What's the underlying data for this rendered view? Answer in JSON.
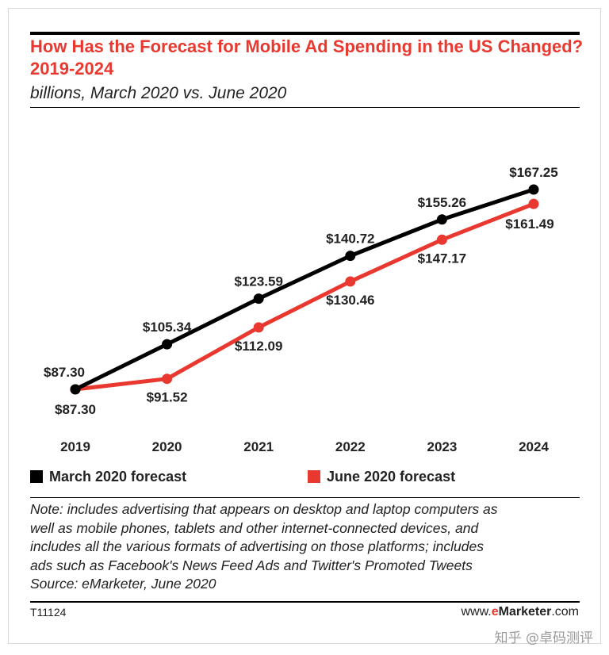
{
  "header": {
    "title": "How Has the Forecast for Mobile Ad Spending in the US Changed? 2019-2024",
    "subtitle": "billions, March 2020 vs. June 2020"
  },
  "chart_data": {
    "type": "line",
    "title": "How Has the Forecast for Mobile Ad Spending in the US Changed? 2019-2024",
    "subtitle": "billions, March 2020 vs. June 2020",
    "categories": [
      "2019",
      "2020",
      "2021",
      "2022",
      "2023",
      "2024"
    ],
    "series": [
      {
        "name": "March 2020 forecast",
        "color": "#000000",
        "values": [
          87.3,
          105.34,
          123.59,
          140.72,
          155.26,
          167.25
        ],
        "labels": [
          "$87.30",
          "$105.34",
          "$123.59",
          "$140.72",
          "$155.26",
          "$167.25"
        ]
      },
      {
        "name": "June 2020 forecast",
        "color": "#e8382f",
        "values": [
          87.3,
          91.52,
          112.09,
          130.46,
          147.17,
          161.49
        ],
        "labels": [
          "$87.30",
          "$91.52",
          "$112.09",
          "$130.46",
          "$147.17",
          "$161.49"
        ]
      }
    ],
    "grid": false,
    "legend_position": "bottom"
  },
  "legend": {
    "march_label": "March 2020 forecast",
    "june_label": "June 2020 forecast"
  },
  "note": {
    "lines": [
      "Note: includes advertising that appears on desktop and laptop computers as",
      "well as mobile phones, tablets and other internet-connected devices, and",
      "includes all the various formats of advertising on those platforms; includes",
      "ads such as Facebook's News Feed Ads and Twitter's Promoted Tweets",
      "Source: eMarketer, June 2020"
    ]
  },
  "footer": {
    "code": "T11124",
    "brand_prefix": "www.",
    "brand_e": "e",
    "brand_name": "Marketer",
    "brand_suffix": ".com"
  },
  "watermark": "知乎 @卓码测评"
}
